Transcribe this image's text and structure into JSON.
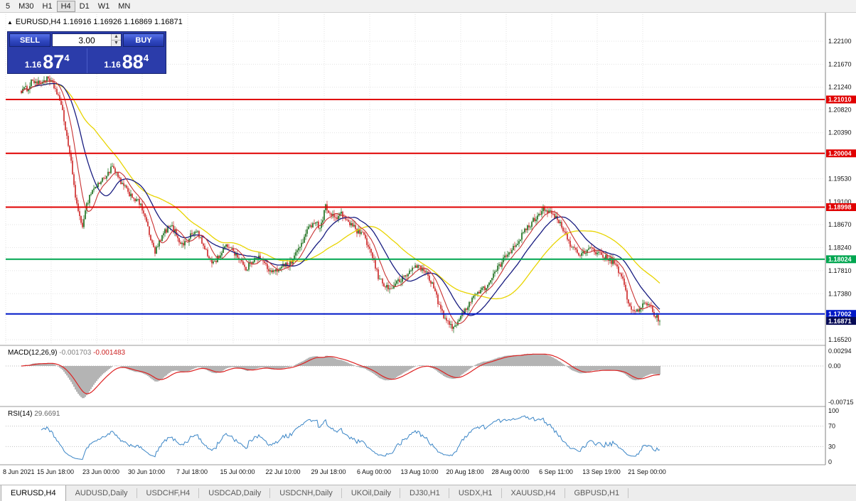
{
  "toolbar": {
    "timeframes": [
      "5",
      "M30",
      "H1",
      "H4",
      "D1",
      "W1",
      "MN"
    ],
    "active": "H4"
  },
  "quote_line": {
    "toggle": "▲",
    "text": "EURUSD,H4 1.16916 1.16926 1.16869 1.16871"
  },
  "trade_panel": {
    "sell_label": "SELL",
    "buy_label": "BUY",
    "volume": "3.00",
    "spinner_up": "▲",
    "spinner_down": "▼",
    "sell_price": {
      "prefix": "1.16",
      "big": "87",
      "sup": "4"
    },
    "buy_price": {
      "prefix": "1.16",
      "big": "88",
      "sup": "4"
    }
  },
  "price_axis": {
    "gridline_labels": [
      {
        "price": 1.221,
        "label": "1.22100"
      },
      {
        "price": 1.2167,
        "label": "1.21670"
      },
      {
        "price": 1.2124,
        "label": "1.21240"
      },
      {
        "price": 1.2082,
        "label": "1.20820"
      },
      {
        "price": 1.2039,
        "label": "1.20390"
      },
      {
        "price": 1.1953,
        "label": "1.19530"
      },
      {
        "price": 1.191,
        "label": "1.19100"
      },
      {
        "price": 1.1867,
        "label": "1.18670"
      },
      {
        "price": 1.1824,
        "label": "1.18240"
      },
      {
        "price": 1.1781,
        "label": "1.17810"
      },
      {
        "price": 1.1738,
        "label": "1.17380"
      },
      {
        "price": 1.1652,
        "label": "1.16520"
      }
    ]
  },
  "horizontal_lines": [
    {
      "price": 1.2101,
      "label": "1.21010",
      "color": "#e00000",
      "type": "resistance"
    },
    {
      "price": 1.20004,
      "label": "1.20004",
      "color": "#e00000",
      "type": "resistance"
    },
    {
      "price": 1.18998,
      "label": "1.18998",
      "color": "#e00000",
      "type": "resistance"
    },
    {
      "price": 1.18024,
      "label": "1.18024",
      "color": "#00a650",
      "type": "support"
    },
    {
      "price": 1.17002,
      "label": "1.17002",
      "color": "#0018c8",
      "type": "support"
    }
  ],
  "current_price": {
    "price": 1.16871,
    "label": "1.16871",
    "badge_color": "#070b56"
  },
  "macd_panel": {
    "title": "MACD(12,26,9)",
    "value_main": "-0.001703",
    "value_signal": "-0.001483",
    "axis_labels": [
      {
        "value": 0.00294,
        "label": "0.00294"
      },
      {
        "value": 0,
        "label": "0.00"
      },
      {
        "value": -0.00715,
        "label": "-0.00715"
      }
    ]
  },
  "rsi_panel": {
    "title": "RSI(14)",
    "value": "29.6691",
    "levels": [
      70,
      30
    ],
    "axis_labels": [
      {
        "value": 100,
        "label": "100"
      },
      {
        "value": 70,
        "label": "70"
      },
      {
        "value": 30,
        "label": "30"
      },
      {
        "value": 0,
        "label": "0"
      }
    ]
  },
  "time_axis": {
    "labels": [
      "8 Jun 2021",
      "15 Jun 18:00",
      "23 Jun 00:00",
      "30 Jun 10:00",
      "7 Jul 18:00",
      "15 Jul 00:00",
      "22 Jul 10:00",
      "29 Jul 18:00",
      "6 Aug 00:00",
      "13 Aug 10:00",
      "20 Aug 18:00",
      "28 Aug 00:00",
      "6 Sep 11:00",
      "13 Sep 19:00",
      "21 Sep 00:00"
    ]
  },
  "tabs": [
    {
      "label": "EURUSD,H4",
      "active": true
    },
    {
      "label": "AUDUSD,Daily",
      "active": false
    },
    {
      "label": "USDCHF,H4",
      "active": false
    },
    {
      "label": "USDCAD,Daily",
      "active": false
    },
    {
      "label": "USDCNH,Daily",
      "active": false
    },
    {
      "label": "UKOil,Daily",
      "active": false
    },
    {
      "label": "DJ30,H1",
      "active": false
    },
    {
      "label": "USDX,H1",
      "active": false
    },
    {
      "label": "XAUUSD,H4",
      "active": false
    },
    {
      "label": "GBPUSD,H1",
      "active": false
    }
  ],
  "chart_data": {
    "type": "candlestick",
    "symbol": "EURUSD",
    "timeframe": "H4",
    "visible_range": {
      "start": "8 Jun 2021",
      "end": "21 Sep 2021"
    },
    "y_range": [
      1.163,
      1.2255
    ],
    "ohlc_quote": {
      "open": 1.16916,
      "high": 1.16926,
      "low": 1.16869,
      "close": 1.16871
    },
    "bars": 450,
    "noise_seed": 1234,
    "body_noise": 0.0011,
    "wick_noise": 0.0008,
    "bull_color": "#156a15",
    "bear_color": "#cc2222",
    "moving_averages": [
      {
        "period": 52,
        "color": "#e8d400",
        "width": 1.3
      },
      {
        "period": 24,
        "color": "#181c80",
        "width": 1.3
      },
      {
        "period": 10,
        "color": "#c83232",
        "width": 1.1
      }
    ],
    "macd": {
      "fast": 12,
      "slow": 26,
      "signal": 9,
      "histogram_color": "#b4b4b4",
      "signal_color": "#dd2222"
    },
    "rsi": {
      "period": 14,
      "color": "#3a85c6",
      "last_value": 29.6691
    },
    "close_path_anchors": [
      [
        0.0,
        1.2118
      ],
      [
        0.01,
        1.2122
      ],
      [
        0.017,
        1.2138
      ],
      [
        0.028,
        1.213
      ],
      [
        0.039,
        1.214
      ],
      [
        0.05,
        1.2128
      ],
      [
        0.058,
        1.2108
      ],
      [
        0.065,
        1.2074
      ],
      [
        0.072,
        1.2028
      ],
      [
        0.078,
        1.1981
      ],
      [
        0.084,
        1.1928
      ],
      [
        0.089,
        1.1888
      ],
      [
        0.095,
        1.1862
      ],
      [
        0.1,
        1.1895
      ],
      [
        0.109,
        1.1928
      ],
      [
        0.117,
        1.1939
      ],
      [
        0.125,
        1.1948
      ],
      [
        0.134,
        1.1961
      ],
      [
        0.143,
        1.1975
      ],
      [
        0.15,
        1.1958
      ],
      [
        0.158,
        1.1942
      ],
      [
        0.167,
        1.1928
      ],
      [
        0.176,
        1.1918
      ],
      [
        0.184,
        1.1908
      ],
      [
        0.193,
        1.1888
      ],
      [
        0.2,
        1.1849
      ],
      [
        0.209,
        1.1815
      ],
      [
        0.217,
        1.1835
      ],
      [
        0.225,
        1.1855
      ],
      [
        0.234,
        1.1865
      ],
      [
        0.243,
        1.1849
      ],
      [
        0.251,
        1.1829
      ],
      [
        0.258,
        1.1835
      ],
      [
        0.267,
        1.1849
      ],
      [
        0.276,
        1.1855
      ],
      [
        0.284,
        1.1829
      ],
      [
        0.292,
        1.1809
      ],
      [
        0.301,
        1.1795
      ],
      [
        0.31,
        1.1809
      ],
      [
        0.317,
        1.1822
      ],
      [
        0.325,
        1.1829
      ],
      [
        0.334,
        1.1815
      ],
      [
        0.343,
        1.1802
      ],
      [
        0.351,
        1.1782
      ],
      [
        0.359,
        1.1795
      ],
      [
        0.367,
        1.1809
      ],
      [
        0.376,
        1.1802
      ],
      [
        0.384,
        1.1789
      ],
      [
        0.392,
        1.1776
      ],
      [
        0.401,
        1.1782
      ],
      [
        0.41,
        1.1795
      ],
      [
        0.418,
        1.1789
      ],
      [
        0.425,
        1.1802
      ],
      [
        0.434,
        1.1822
      ],
      [
        0.443,
        1.1842
      ],
      [
        0.451,
        1.1862
      ],
      [
        0.459,
        1.1875
      ],
      [
        0.468,
        1.1862
      ],
      [
        0.477,
        1.1902
      ],
      [
        0.484,
        1.1888
      ],
      [
        0.492,
        1.1878
      ],
      [
        0.501,
        1.1886
      ],
      [
        0.51,
        1.1875
      ],
      [
        0.518,
        1.1865
      ],
      [
        0.526,
        1.1855
      ],
      [
        0.534,
        1.1849
      ],
      [
        0.543,
        1.1829
      ],
      [
        0.551,
        1.1802
      ],
      [
        0.559,
        1.1769
      ],
      [
        0.568,
        1.1756
      ],
      [
        0.577,
        1.1745
      ],
      [
        0.585,
        1.1756
      ],
      [
        0.592,
        1.1762
      ],
      [
        0.601,
        1.1769
      ],
      [
        0.61,
        1.1782
      ],
      [
        0.618,
        1.1792
      ],
      [
        0.626,
        1.1784
      ],
      [
        0.635,
        1.1776
      ],
      [
        0.644,
        1.1756
      ],
      [
        0.651,
        1.1729
      ],
      [
        0.659,
        1.1702
      ],
      [
        0.668,
        1.1682
      ],
      [
        0.677,
        1.1676
      ],
      [
        0.685,
        1.1689
      ],
      [
        0.693,
        1.1702
      ],
      [
        0.701,
        1.1722
      ],
      [
        0.71,
        1.1736
      ],
      [
        0.718,
        1.1742
      ],
      [
        0.726,
        1.1749
      ],
      [
        0.735,
        1.1762
      ],
      [
        0.744,
        1.1782
      ],
      [
        0.752,
        1.1795
      ],
      [
        0.759,
        1.1809
      ],
      [
        0.768,
        1.1822
      ],
      [
        0.777,
        1.1835
      ],
      [
        0.785,
        1.1849
      ],
      [
        0.793,
        1.1862
      ],
      [
        0.802,
        1.1875
      ],
      [
        0.811,
        1.1888
      ],
      [
        0.818,
        1.1899
      ],
      [
        0.826,
        1.1891
      ],
      [
        0.835,
        1.1882
      ],
      [
        0.844,
        1.1868
      ],
      [
        0.852,
        1.1849
      ],
      [
        0.86,
        1.1829
      ],
      [
        0.869,
        1.1819
      ],
      [
        0.877,
        1.1811
      ],
      [
        0.885,
        1.1815
      ],
      [
        0.893,
        1.1822
      ],
      [
        0.902,
        1.1815
      ],
      [
        0.911,
        1.1809
      ],
      [
        0.918,
        1.1802
      ],
      [
        0.926,
        1.1798
      ],
      [
        0.935,
        1.1782
      ],
      [
        0.944,
        1.1756
      ],
      [
        0.952,
        1.1716
      ],
      [
        0.96,
        1.1702
      ],
      [
        0.969,
        1.1709
      ],
      [
        0.978,
        1.1722
      ],
      [
        0.985,
        1.1716
      ],
      [
        0.993,
        1.1696
      ],
      [
        1.0,
        1.16871
      ]
    ]
  }
}
